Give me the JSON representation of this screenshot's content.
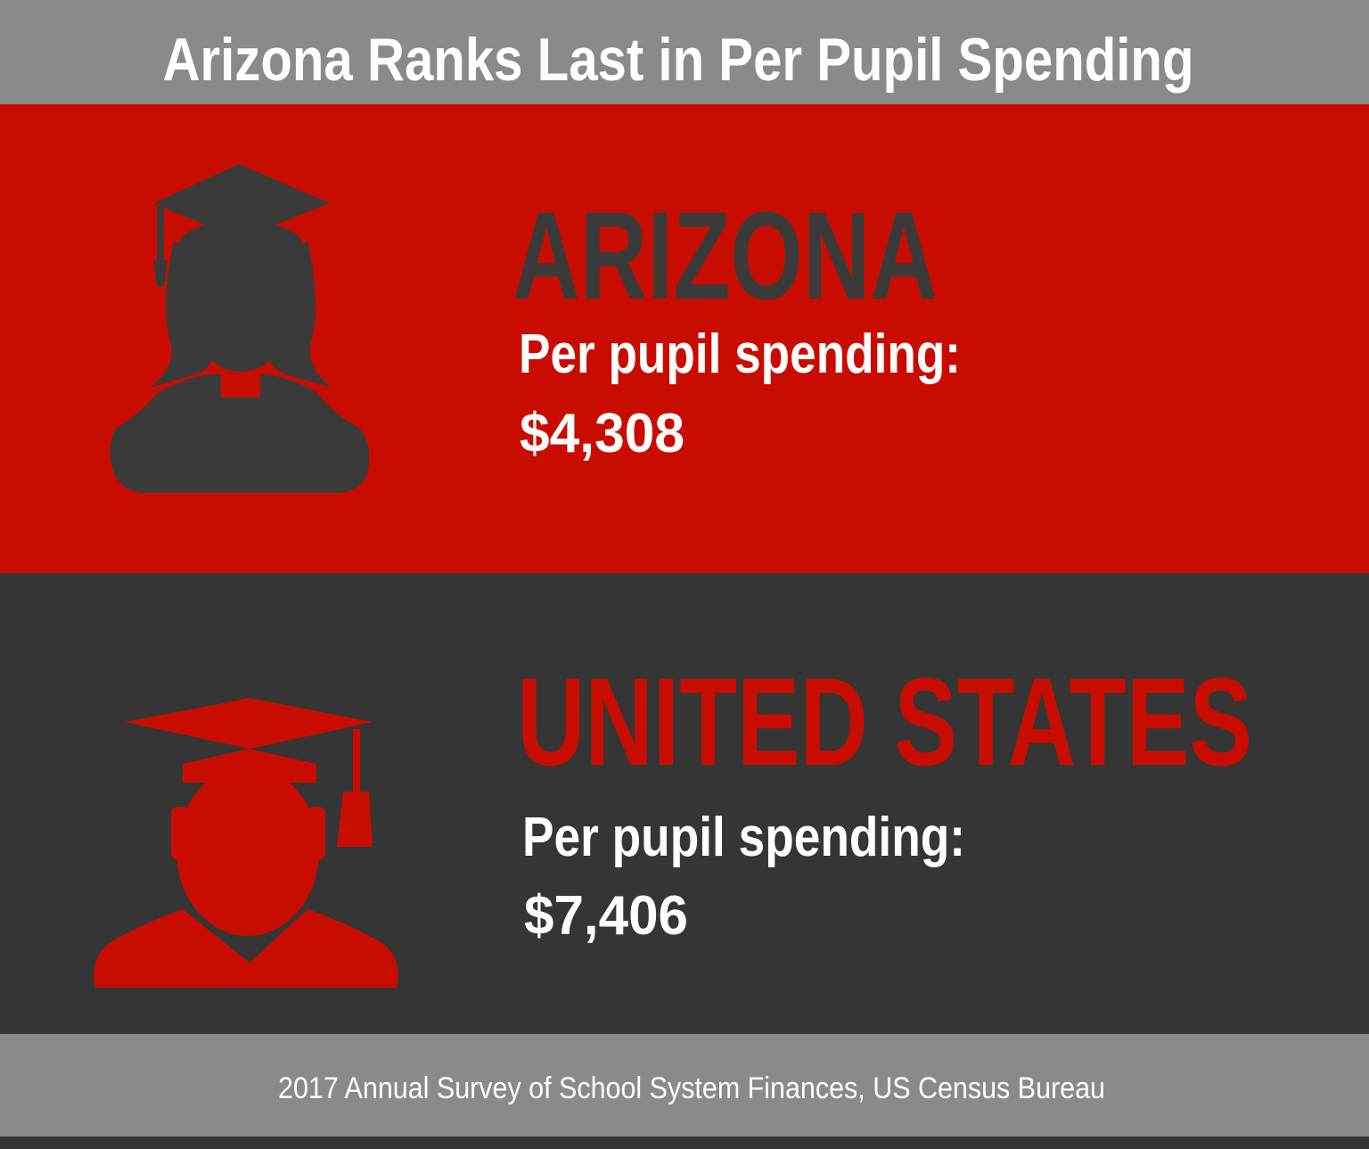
{
  "header": {
    "title": "Arizona Ranks Last in Per Pupil Spending"
  },
  "panels": [
    {
      "name": "ARIZONA",
      "label": "Per pupil spending:",
      "amount": "$4,308"
    },
    {
      "name": "UNITED STATES",
      "label": "Per pupil spending:",
      "amount": "$7,406"
    }
  ],
  "footer": {
    "source": "2017 Annual Survey of School System Finances, US Census Bureau"
  }
}
